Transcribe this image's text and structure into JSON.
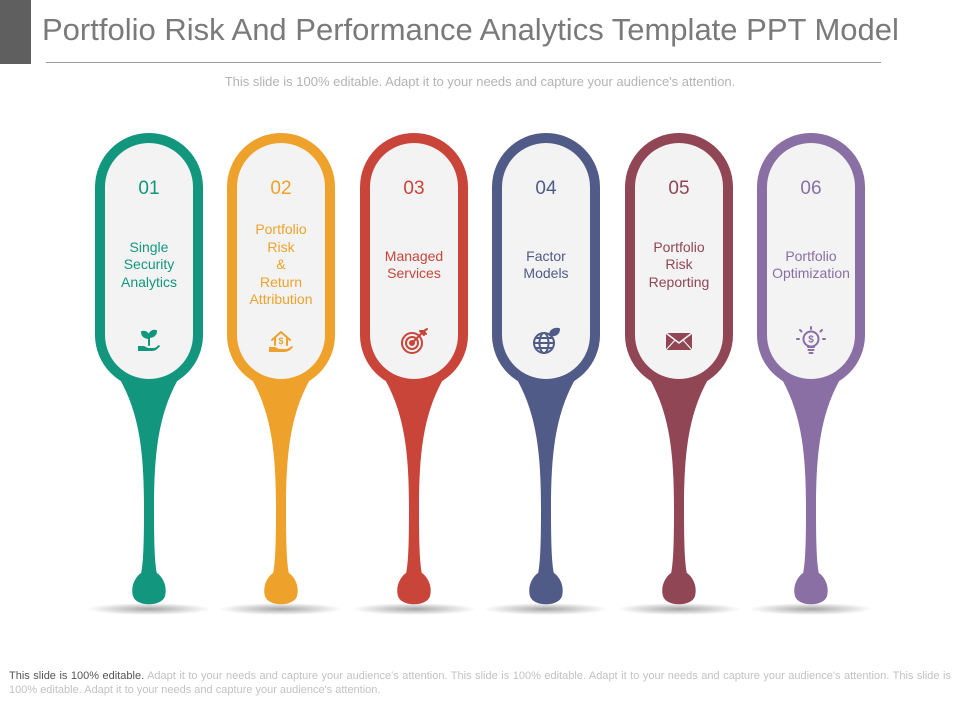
{
  "header": {
    "title": "Portfolio Risk And Performance Analytics Template PPT Model",
    "subtitle": "This slide is 100% editable. Adapt it to your needs and capture your audience's attention."
  },
  "steps": [
    {
      "number": "01",
      "label": "Single Security Analytics",
      "lines": [
        "Single",
        "Security",
        "Analytics"
      ],
      "color": "#13967e",
      "icon": "plant-hand-icon"
    },
    {
      "number": "02",
      "label": "Portfolio Risk & Return Attribution",
      "lines": [
        "Portfolio",
        "Risk",
        "&",
        "Return",
        "Attribution"
      ],
      "color": "#eea22c",
      "icon": "house-dollar-hand-icon"
    },
    {
      "number": "03",
      "label": "Managed Services",
      "lines": [
        "Managed",
        "Services"
      ],
      "color": "#c9453a",
      "icon": "target-icon"
    },
    {
      "number": "04",
      "label": "Factor Models",
      "lines": [
        "Factor",
        "Models"
      ],
      "color": "#505b87",
      "icon": "globe-leaf-icon"
    },
    {
      "number": "05",
      "label": "Portfolio Risk Reporting",
      "lines": [
        "Portfolio",
        "Risk",
        "Reporting"
      ],
      "color": "#914655",
      "icon": "envelope-icon"
    },
    {
      "number": "06",
      "label": "Portfolio Optimization",
      "lines": [
        "Portfolio",
        "Optimization"
      ],
      "color": "#8a6fa5",
      "icon": "lightbulb-dollar-icon"
    }
  ],
  "footer": {
    "lead": "This slide is 100% editable.",
    "text": " Adapt it to your needs and capture your audience's attention. This slide is 100% editable. Adapt it to your needs and capture your audience's attention. This slide is 100% editable. Adapt it to your needs and capture your audience's attention."
  }
}
